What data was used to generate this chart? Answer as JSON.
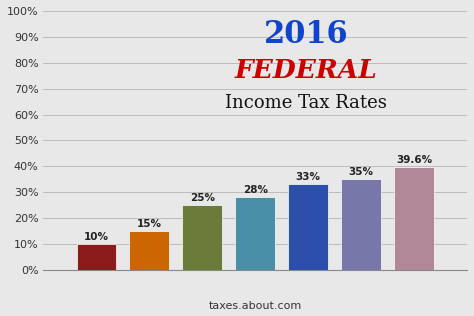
{
  "categories": [
    "",
    "10%",
    "15%",
    "25%",
    "28%",
    "33%",
    "35%",
    "39.6%",
    ""
  ],
  "values": [
    0,
    10,
    15,
    25,
    28,
    33,
    35,
    39.6,
    0
  ],
  "bar_values": [
    10,
    15,
    25,
    28,
    33,
    35,
    39.6
  ],
  "bar_labels": [
    "10%",
    "15%",
    "25%",
    "28%",
    "33%",
    "35%",
    "39.6%"
  ],
  "bar_colors": [
    "#8B1A1A",
    "#CC6600",
    "#6B7C3A",
    "#4A8FA8",
    "#2B4FAA",
    "#7777AA",
    "#B08898"
  ],
  "title_year": "2016",
  "title_year_color": "#1144CC",
  "title_federal": "FEDERAL",
  "title_federal_color": "#CC0000",
  "title_subtitle": "Income Tax Rates",
  "title_subtitle_color": "#111111",
  "footer": "taxes.about.com",
  "footer_color": "#333333",
  "ylim": [
    0,
    100
  ],
  "yticks": [
    0,
    10,
    20,
    30,
    40,
    50,
    60,
    70,
    80,
    90,
    100
  ],
  "background_color": "#E8E8E8",
  "plot_background": "#E8E8E8"
}
